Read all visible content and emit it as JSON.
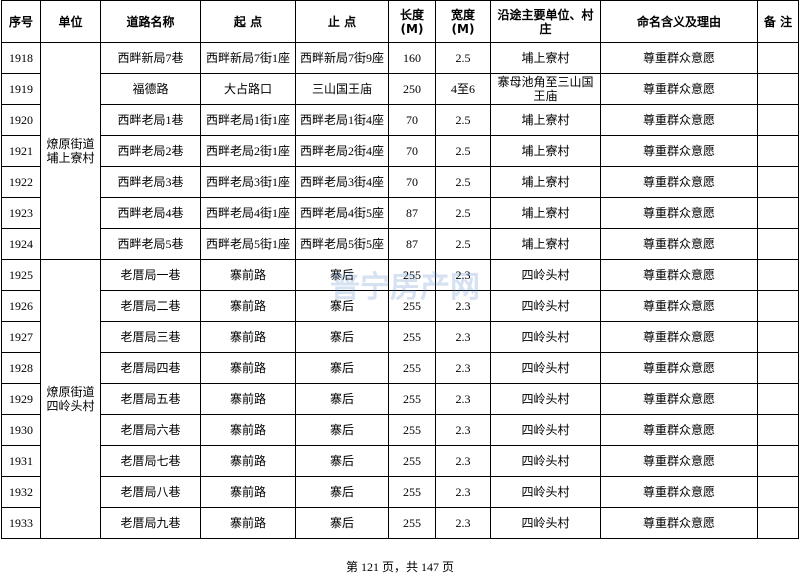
{
  "table": {
    "header": [
      [
        "序号"
      ],
      [
        "单位"
      ],
      [
        "道路名称"
      ],
      [
        "起  点"
      ],
      [
        "止  点"
      ],
      [
        "长度",
        "(M)"
      ],
      [
        "宽度",
        "(M)"
      ],
      [
        "沿途主要单位、村",
        "庄"
      ],
      [
        "命名含义及理由"
      ],
      [
        "备  注"
      ]
    ],
    "groups": [
      {
        "unit": [
          "燎原街道",
          "埔上寮村"
        ],
        "rows": [
          [
            "1918",
            "西畔新局7巷",
            "西畔新局7街1座",
            "西畔新局7街9座",
            "160",
            "2.5",
            "埔上寮村",
            "尊重群众意愿"
          ],
          [
            "1919",
            "福德路",
            "大占路口",
            "三山国王庙",
            "250",
            "4至6",
            "寨母池角至三山国王庙",
            "尊重群众意愿"
          ],
          [
            "1920",
            "西畔老局1巷",
            "西畔老局1街1座",
            "西畔老局1街4座",
            "70",
            "2.5",
            "埔上寮村",
            "尊重群众意愿"
          ],
          [
            "1921",
            "西畔老局2巷",
            "西畔老局2街1座",
            "西畔老局2街4座",
            "70",
            "2.5",
            "埔上寮村",
            "尊重群众意愿"
          ],
          [
            "1922",
            "西畔老局3巷",
            "西畔老局3街1座",
            "西畔老局3街4座",
            "70",
            "2.5",
            "埔上寮村",
            "尊重群众意愿"
          ],
          [
            "1923",
            "西畔老局4巷",
            "西畔老局4街1座",
            "西畔老局4街5座",
            "87",
            "2.5",
            "埔上寮村",
            "尊重群众意愿"
          ],
          [
            "1924",
            "西畔老局5巷",
            "西畔老局5街1座",
            "西畔老局5街5座",
            "87",
            "2.5",
            "埔上寮村",
            "尊重群众意愿"
          ]
        ]
      },
      {
        "unit": [
          "燎原街道",
          "四岭头村"
        ],
        "rows": [
          [
            "1925",
            "老厝局一巷",
            "寨前路",
            "寨后",
            "255",
            "2.3",
            "四岭头村",
            "尊重群众意愿"
          ],
          [
            "1926",
            "老厝局二巷",
            "寨前路",
            "寨后",
            "255",
            "2.3",
            "四岭头村",
            "尊重群众意愿"
          ],
          [
            "1927",
            "老厝局三巷",
            "寨前路",
            "寨后",
            "255",
            "2.3",
            "四岭头村",
            "尊重群众意愿"
          ],
          [
            "1928",
            "老厝局四巷",
            "寨前路",
            "寨后",
            "255",
            "2.3",
            "四岭头村",
            "尊重群众意愿"
          ],
          [
            "1929",
            "老厝局五巷",
            "寨前路",
            "寨后",
            "255",
            "2.3",
            "四岭头村",
            "尊重群众意愿"
          ],
          [
            "1930",
            "老厝局六巷",
            "寨前路",
            "寨后",
            "255",
            "2.3",
            "四岭头村",
            "尊重群众意愿"
          ],
          [
            "1931",
            "老厝局七巷",
            "寨前路",
            "寨后",
            "255",
            "2.3",
            "四岭头村",
            "尊重群众意愿"
          ],
          [
            "1932",
            "老厝局八巷",
            "寨前路",
            "寨后",
            "255",
            "2.3",
            "四岭头村",
            "尊重群众意愿"
          ],
          [
            "1933",
            "老厝局九巷",
            "寨前路",
            "寨后",
            "255",
            "2.3",
            "四岭头村",
            "尊重群众意愿"
          ]
        ]
      }
    ]
  },
  "watermark": "普宁房产网",
  "footer": "第 121 页，共 147 页"
}
